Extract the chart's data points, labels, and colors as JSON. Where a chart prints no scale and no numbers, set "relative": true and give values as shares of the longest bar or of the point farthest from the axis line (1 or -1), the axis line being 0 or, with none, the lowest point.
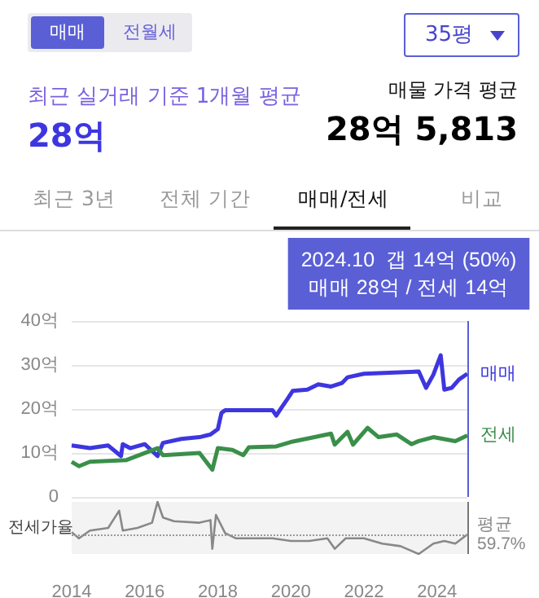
{
  "chart_data": [
    {
      "type": "line",
      "annotations": [
        "매매",
        "전월세",
        "35평",
        "최근 실거래 기준 1개월 평균",
        "28억",
        "매물 가격 평균",
        "28억 5,813",
        "최근 3년",
        "전체 기간",
        "매매/전세",
        "비교"
      ],
      "xlim": [
        2014,
        2024.83
      ],
      "xticks": [
        2014,
        2016,
        2018,
        2020,
        2022,
        2024
      ],
      "ylim": [
        0,
        40
      ],
      "yticks": [
        0,
        {
          "value": 10,
          "label": "10억"
        },
        {
          "value": 20,
          "label": "20억"
        },
        {
          "value": 30,
          "label": "30억"
        },
        {
          "value": 40,
          "label": "40억"
        }
      ],
      "grid": "y",
      "legend": false,
      "tick_labels": "y",
      "ref_lines": [
        {
          "axis": "x",
          "value": 2024.83,
          "label": "2024.10  갭 14억 (50%)\n매매 28억 / 전세 14억",
          "color": "#5a5fd6"
        }
      ],
      "series": [
        {
          "name": "매매",
          "color": "#3d36e0",
          "x": [
            2014.0,
            2014.5,
            2015.0,
            2015.35,
            2015.4,
            2015.6,
            2016.0,
            2016.35,
            2016.5,
            2017.0,
            2017.5,
            2017.8,
            2018.0,
            2018.1,
            2018.2,
            2019.5,
            2019.6,
            2019.75,
            2019.9,
            2020.05,
            2020.45,
            2020.75,
            2021.1,
            2021.4,
            2021.55,
            2022.0,
            2023.5,
            2023.7,
            2023.9,
            2024.1,
            2024.2,
            2024.4,
            2024.6,
            2024.83
          ],
          "values": [
            11.7,
            11.1,
            11.7,
            9.3,
            12,
            11.1,
            12,
            9.3,
            12.3,
            13.2,
            13.6,
            14.2,
            15.4,
            19.1,
            19.7,
            19.7,
            18.5,
            20.4,
            22.2,
            24.1,
            24.4,
            25.6,
            25.1,
            25.9,
            27.2,
            28,
            28.5,
            24.8,
            27.8,
            32.2,
            24.4,
            24.8,
            26.7,
            28
          ]
        },
        {
          "name": "전세",
          "color": "#3a8f4a",
          "x": [
            2014.0,
            2014.2,
            2014.5,
            2015.5,
            2016.35,
            2016.5,
            2017.5,
            2017.85,
            2018.0,
            2018.4,
            2018.7,
            2018.85,
            2019.6,
            2020.05,
            2020.65,
            2021.1,
            2021.2,
            2021.55,
            2021.7,
            2022.1,
            2022.4,
            2022.9,
            2023.3,
            2023.5,
            2023.9,
            2024.5,
            2024.83
          ],
          "values": [
            8,
            7,
            8,
            8.4,
            11.1,
            9.5,
            10,
            6.2,
            11.1,
            10.7,
            9.5,
            11.3,
            11.5,
            12.6,
            13.6,
            14.4,
            11.9,
            14.8,
            11.9,
            15.7,
            13.6,
            14.2,
            12,
            12.7,
            13.6,
            12.7,
            14
          ]
        }
      ]
    },
    {
      "type": "line",
      "relative": true,
      "ylabel": "전세가율",
      "tick_labels": "x",
      "grid": false,
      "legend": false,
      "xlim": [
        2014,
        2024.83
      ],
      "xticks": [
        2014,
        2016,
        2018,
        2020,
        2022,
        2024
      ],
      "ref_lines": [
        {
          "axis": "y",
          "value": 0.375,
          "label": "평균\n59.7%",
          "color": "#999999",
          "line_style": "dotted"
        },
        {
          "axis": "x",
          "value": 2024.83,
          "color": "#777777"
        }
      ],
      "series": [
        {
          "color": "#888888",
          "x": [
            2014.0,
            2014.2,
            2014.5,
            2015.0,
            2015.3,
            2015.4,
            2015.8,
            2016.2,
            2016.35,
            2016.5,
            2016.8,
            2017.5,
            2017.8,
            2017.85,
            2017.95,
            2018.2,
            2018.5,
            2019.5,
            2020.0,
            2020.5,
            2021.0,
            2021.2,
            2021.5,
            2022.0,
            2022.5,
            2023.0,
            2023.5,
            2023.9,
            2024.2,
            2024.5,
            2024.83
          ],
          "values": [
            0.42,
            0.3,
            0.45,
            0.5,
            0.83,
            0.45,
            0.5,
            0.6,
            1.0,
            0.7,
            0.63,
            0.6,
            0.65,
            0.1,
            0.75,
            0.4,
            0.3,
            0.3,
            0.25,
            0.25,
            0.3,
            0.1,
            0.3,
            0.3,
            0.2,
            0.15,
            0,
            0.2,
            0.25,
            0.2,
            0.375
          ]
        }
      ]
    }
  ]
}
